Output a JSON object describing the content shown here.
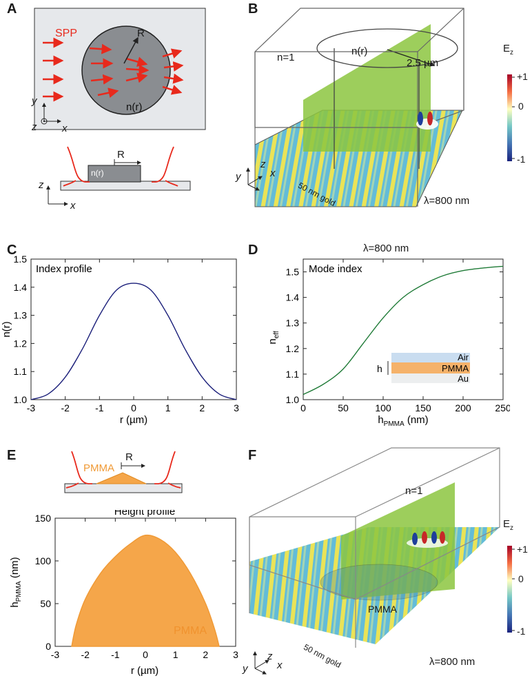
{
  "panels": {
    "a": {
      "label": "A",
      "spp": "SPP",
      "r": "R",
      "nr": "n(r)",
      "y": "y",
      "z": "z",
      "x": "x",
      "z2": "z",
      "x2": "x",
      "r2": "R",
      "nr2": "n(r)"
    },
    "b": {
      "label": "B",
      "n1": "n=1",
      "nr": "n(r)",
      "radius": "2.5 µm",
      "ez": "E",
      "ezsub": "z",
      "cb_top": "+1",
      "cb_mid": "0",
      "cb_bot": "-1",
      "gold": "50 nm gold",
      "lambda": "λ=800 nm",
      "axy": "y",
      "axz": "z",
      "axx": "x"
    },
    "c": {
      "label": "C",
      "title": "Index profile",
      "xlabel": "r (µm)",
      "ylabel": "n(r)"
    },
    "d": {
      "label": "D",
      "top": "λ=800 nm",
      "title": "Mode index",
      "ylabel_main": "n",
      "ylabel_sub": "eff",
      "xlabel_main": "h",
      "xlabel_sub": "PMMA",
      "xlabel_unit": " (nm)",
      "inset_air": "Air",
      "inset_pmma": "PMMA",
      "inset_au": "Au",
      "inset_h": "h"
    },
    "e": {
      "label": "E",
      "pmma": "PMMA",
      "r": "R",
      "title": "Height profile",
      "xlabel": "r (µm)",
      "ylabel_main": "h",
      "ylabel_sub": "PMMA",
      "ylabel_unit": " (nm)",
      "fill_label": "PMMA"
    },
    "f": {
      "label": "F",
      "n1": "n=1",
      "ez": "E",
      "ezsub": "z",
      "cb_top": "+1",
      "cb_mid": "0",
      "cb_bot": "-1",
      "pmma": "PMMA",
      "gold": "50 nm gold",
      "lambda": "λ=800 nm",
      "axy": "y",
      "axz": "z",
      "axx": "x"
    }
  },
  "colors": {
    "spp": "#e8291c",
    "curve_c": "#1b1f7a",
    "curve_d": "#1e7a36",
    "pmma": "#f5a64a",
    "green": "#8cc63f"
  },
  "chart_data": [
    {
      "type": "line",
      "title": "Index profile",
      "xlabel": "r (µm)",
      "ylabel": "n(r)",
      "xlim": [
        -3,
        3
      ],
      "ylim": [
        1.0,
        1.5
      ],
      "xticks": [
        "-3",
        "-2",
        "-1",
        "0",
        "1",
        "2",
        "3"
      ],
      "yticks": [
        "1.0",
        "1.1",
        "1.2",
        "1.3",
        "1.4",
        "1.5"
      ],
      "x": [
        -3,
        -2.5,
        -2,
        -1.5,
        -1,
        -0.5,
        0,
        0.5,
        1,
        1.5,
        2,
        2.5,
        3
      ],
      "y": [
        1.0,
        1.02,
        1.08,
        1.18,
        1.3,
        1.39,
        1.414,
        1.39,
        1.3,
        1.18,
        1.08,
        1.02,
        1.0
      ]
    },
    {
      "type": "line",
      "title": "Mode index",
      "xlabel": "hPMMA (nm)",
      "ylabel": "neff",
      "xlim": [
        0,
        250
      ],
      "ylim": [
        1.0,
        1.55
      ],
      "xticks": [
        "0",
        "50",
        "100",
        "150",
        "200",
        "250"
      ],
      "yticks": [
        "1.0",
        "1.1",
        "1.2",
        "1.3",
        "1.4",
        "1.5"
      ],
      "x": [
        0,
        25,
        50,
        75,
        100,
        125,
        150,
        175,
        200,
        225,
        250
      ],
      "y": [
        1.02,
        1.06,
        1.12,
        1.22,
        1.32,
        1.4,
        1.45,
        1.485,
        1.505,
        1.515,
        1.522
      ]
    },
    {
      "type": "area",
      "title": "Height profile",
      "xlabel": "r (µm)",
      "ylabel": "hPMMA (nm)",
      "xlim": [
        -3,
        3
      ],
      "ylim": [
        0,
        150
      ],
      "xticks": [
        "-3",
        "-2",
        "-1",
        "0",
        "1",
        "2",
        "3"
      ],
      "yticks": [
        "0",
        "50",
        "100",
        "150"
      ],
      "x": [
        -2.45,
        -2.3,
        -2.0,
        -1.5,
        -1.0,
        -0.5,
        0,
        0.5,
        1.0,
        1.5,
        2.0,
        2.3,
        2.45
      ],
      "y": [
        0,
        25,
        55,
        85,
        105,
        120,
        130,
        125,
        110,
        85,
        50,
        20,
        0
      ]
    }
  ]
}
